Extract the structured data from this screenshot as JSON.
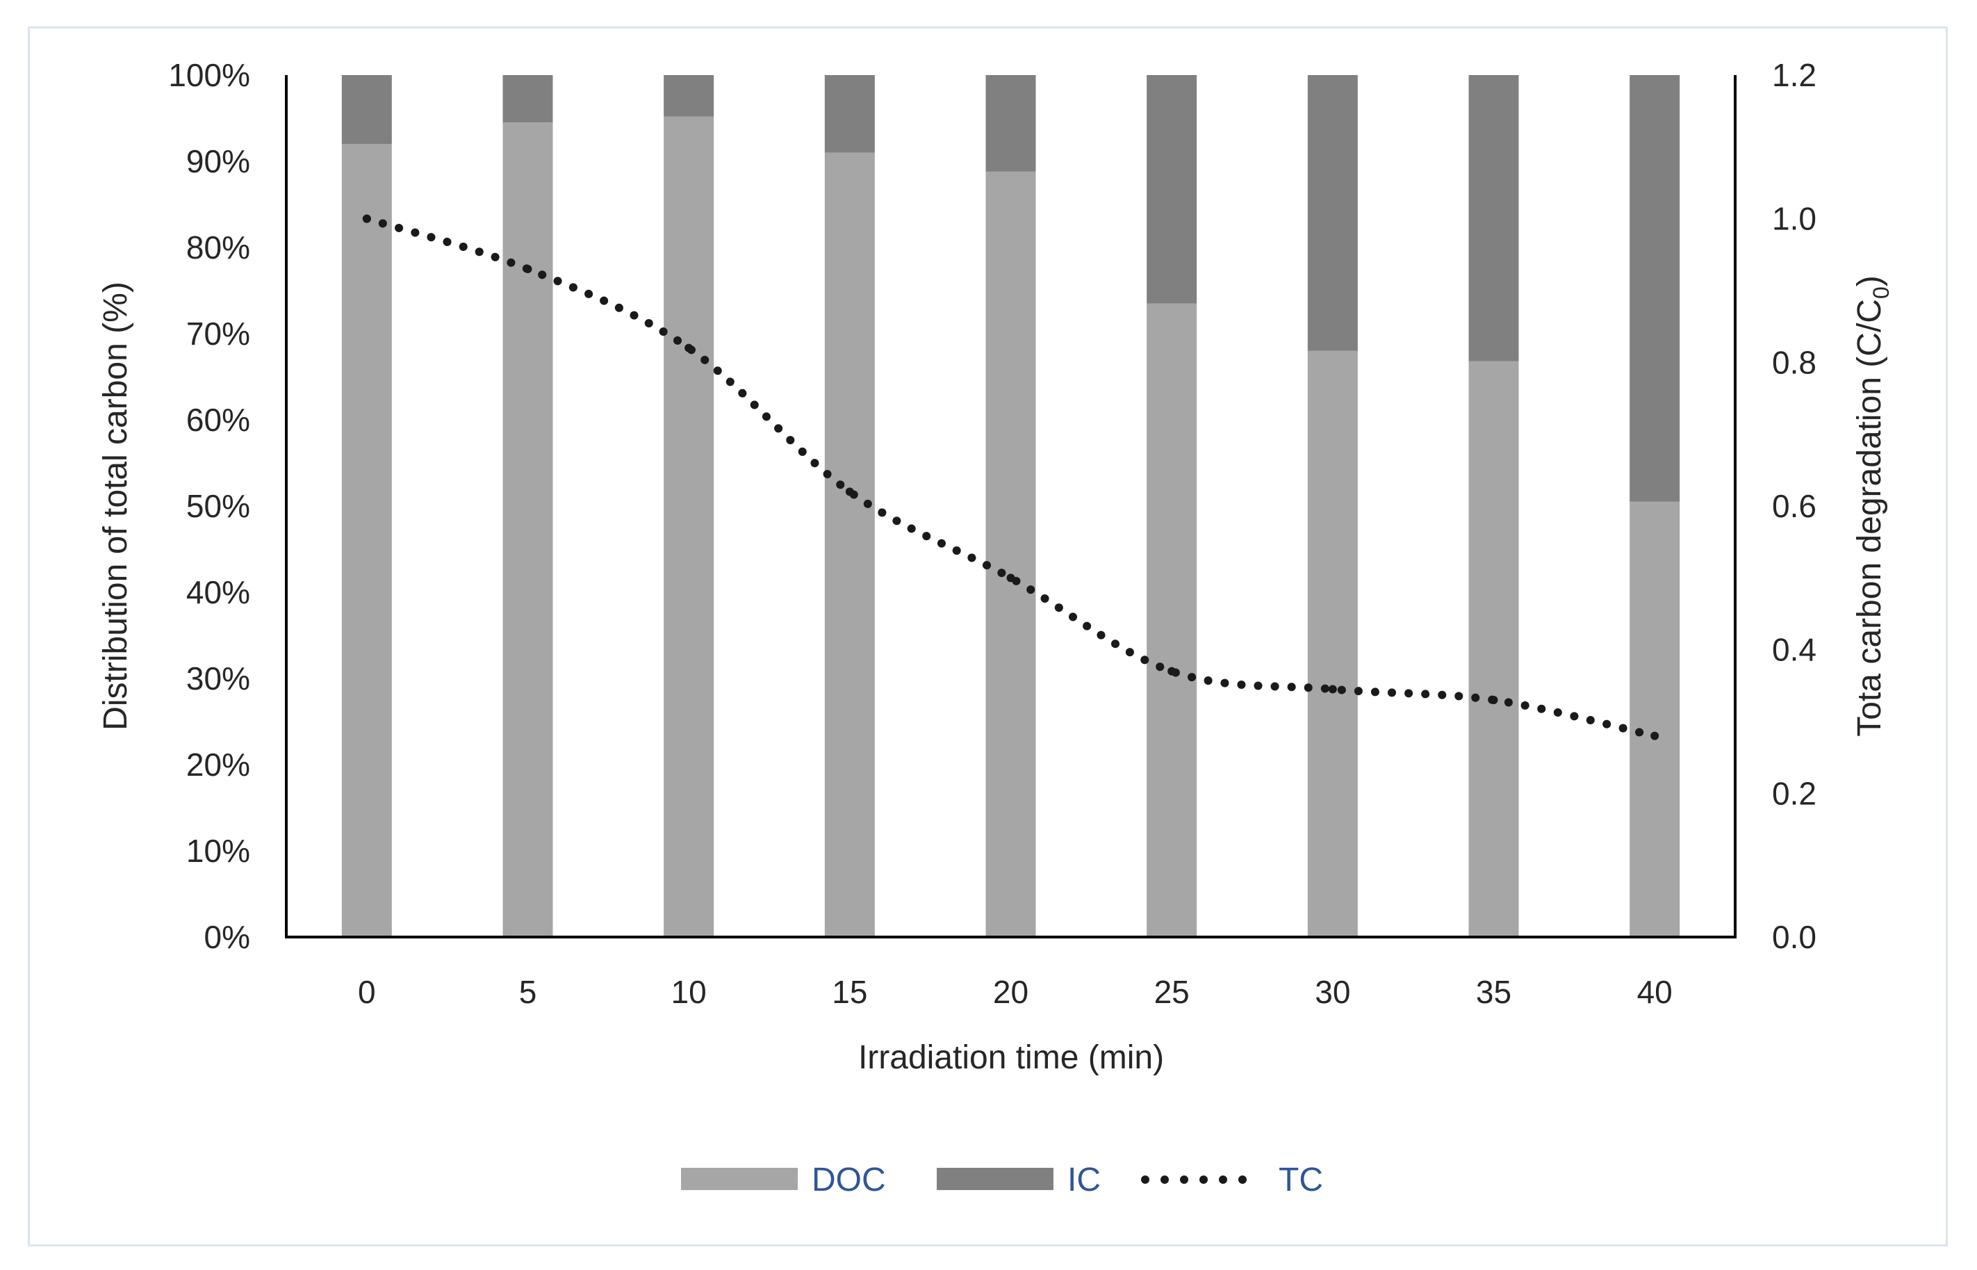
{
  "chart_data": {
    "type": "bar",
    "stacked": true,
    "title": "",
    "xlabel": "Irradiation time (min)",
    "ylabel": "Distribution of total carbon (%)",
    "y2label_main": "Tota carbon degradation (C/C",
    "y2label_sub": "0",
    "y2label_close": ")",
    "categories": [
      "0",
      "5",
      "10",
      "15",
      "20",
      "25",
      "30",
      "35",
      "40"
    ],
    "ylim": [
      0,
      100
    ],
    "y_ticks": [
      "0%",
      "10%",
      "20%",
      "30%",
      "40%",
      "50%",
      "60%",
      "70%",
      "80%",
      "90%",
      "100%"
    ],
    "y2lim": [
      0,
      1.2
    ],
    "y2_ticks": [
      "0.0",
      "0.2",
      "0.4",
      "0.6",
      "0.8",
      "1.0",
      "1.2"
    ],
    "series": [
      {
        "name": "DOC",
        "kind": "bar",
        "axis": "left",
        "color": "#a6a6a6",
        "values": [
          92,
          94.5,
          95.2,
          91,
          88.8,
          73.5,
          68,
          66.8,
          50.5
        ]
      },
      {
        "name": "IC",
        "kind": "bar",
        "axis": "left",
        "color": "#808080",
        "values": [
          8,
          5.5,
          4.8,
          9,
          11.2,
          26.5,
          32,
          33.2,
          49.5
        ]
      },
      {
        "name": "TC",
        "kind": "line",
        "axis": "right",
        "style": "dotted",
        "color": "#1a1a1a",
        "values": [
          1.0,
          0.93,
          0.82,
          0.62,
          0.5,
          0.37,
          0.345,
          0.33,
          0.28
        ]
      }
    ],
    "legend_position": "bottom",
    "grid": false
  }
}
